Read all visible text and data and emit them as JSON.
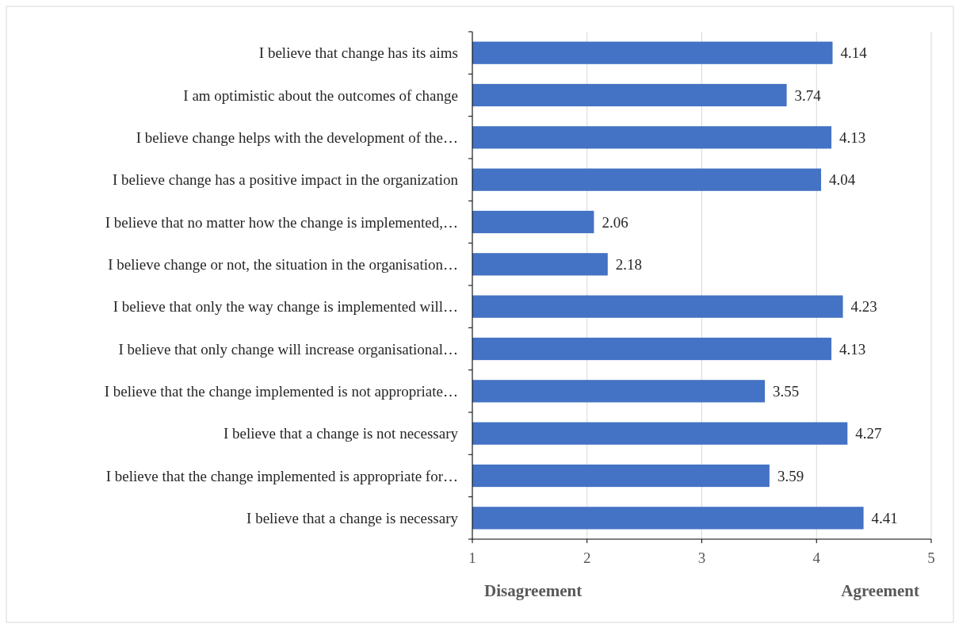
{
  "chart_data": {
    "type": "bar",
    "orientation": "horizontal",
    "categories": [
      "I believe that change has its aims",
      "I am optimistic about the outcomes of change",
      "I believe change helps with the development of the…",
      "I believe change has a positive impact in the organization",
      "I believe that no matter how the change is implemented,…",
      "I believe change or not, the situation in the organisation…",
      "I believe that only the way change is implemented will…",
      "I believe that only change will increase organisational…",
      "I believe that the change implemented is not appropriate…",
      "I believe that a change is not necessary",
      "I believe that the change implemented is appropriate for…",
      "I believe that a change is necessary"
    ],
    "values": [
      4.14,
      3.74,
      4.13,
      4.04,
      2.06,
      2.18,
      4.23,
      4.13,
      3.55,
      4.27,
      3.59,
      4.41
    ],
    "color": "#4472c4",
    "xlim": [
      1,
      5
    ],
    "xticks": [
      1,
      2,
      3,
      4,
      5
    ],
    "grid": "x",
    "data_labels": true,
    "annotations": [
      "Disagreement",
      "Agreement"
    ]
  }
}
